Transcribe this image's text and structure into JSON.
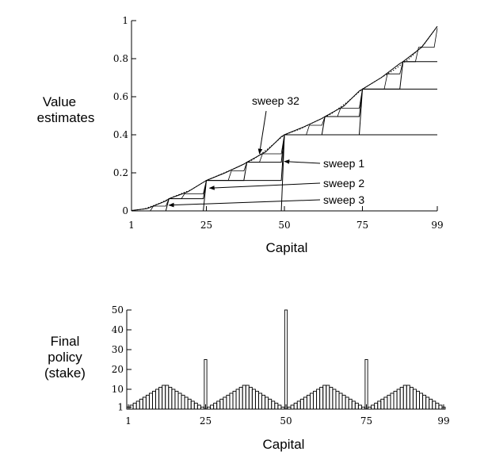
{
  "chart_data": [
    {
      "type": "line",
      "ylabel_lines": [
        "Value",
        "estimates"
      ],
      "xlabel": "Capital",
      "xlim": [
        1,
        99
      ],
      "ylim": [
        0,
        1
      ],
      "x_ticks": [
        1,
        25,
        50,
        75,
        99
      ],
      "y_ticks": [
        {
          "value": 0,
          "label": "0"
        },
        {
          "value": 0.2,
          "label": "0.2"
        },
        {
          "value": 0.4,
          "label": "0.4"
        },
        {
          "value": 0.6,
          "label": "0.6"
        },
        {
          "value": 0.8,
          "label": "0.8"
        },
        {
          "value": 1,
          "label": "1"
        }
      ],
      "grid": false,
      "series": [
        {
          "name": "sweep 1",
          "style": "solid",
          "points": [
            [
              1,
              0
            ],
            [
              49,
              0
            ],
            [
              50,
              0.4
            ],
            [
              98,
              0.4
            ],
            [
              99,
              0.4
            ]
          ]
        },
        {
          "name": "sweep 2",
          "style": "solid",
          "points": [
            [
              1,
              0
            ],
            [
              24,
              0
            ],
            [
              25,
              0.16
            ],
            [
              49,
              0.16
            ],
            [
              50,
              0.4
            ],
            [
              74,
              0.4
            ],
            [
              75,
              0.64
            ],
            [
              98,
              0.64
            ],
            [
              99,
              0.64
            ]
          ]
        },
        {
          "name": "sweep 3",
          "style": "solid",
          "points": [
            [
              1,
              0
            ],
            [
              12,
              0
            ],
            [
              13,
              0.064
            ],
            [
              24,
              0.064
            ],
            [
              25,
              0.16
            ],
            [
              37,
              0.16
            ],
            [
              38,
              0.256
            ],
            [
              49,
              0.256
            ],
            [
              50,
              0.4
            ],
            [
              62,
              0.4
            ],
            [
              63,
              0.496
            ],
            [
              74,
              0.496
            ],
            [
              75,
              0.64
            ],
            [
              87,
              0.64
            ],
            [
              88,
              0.784
            ],
            [
              98,
              0.784
            ],
            [
              99,
              0.784
            ]
          ]
        },
        {
          "name": "sweep 32",
          "style": "solid",
          "points": [
            [
              1,
              0.002
            ],
            [
              6,
              0.012
            ],
            [
              12,
              0.052
            ],
            [
              13,
              0.064
            ],
            [
              19,
              0.1
            ],
            [
              24,
              0.15
            ],
            [
              25,
              0.16
            ],
            [
              31,
              0.2
            ],
            [
              37,
              0.246
            ],
            [
              38,
              0.256
            ],
            [
              44,
              0.31
            ],
            [
              49,
              0.39
            ],
            [
              50,
              0.4
            ],
            [
              56,
              0.44
            ],
            [
              62,
              0.486
            ],
            [
              63,
              0.496
            ],
            [
              69,
              0.55
            ],
            [
              74,
              0.63
            ],
            [
              75,
              0.64
            ],
            [
              81,
              0.7
            ],
            [
              87,
              0.774
            ],
            [
              88,
              0.784
            ],
            [
              94,
              0.86
            ],
            [
              99,
              0.97
            ]
          ]
        },
        {
          "name": "",
          "style": "dotted",
          "points": [
            [
              1,
              0.002
            ],
            [
              5,
              0.01
            ],
            [
              10,
              0.04
            ],
            [
              15,
              0.078
            ],
            [
              20,
              0.11
            ],
            [
              25,
              0.16
            ],
            [
              30,
              0.195
            ],
            [
              35,
              0.23
            ],
            [
              40,
              0.27
            ],
            [
              45,
              0.33
            ],
            [
              50,
              0.4
            ],
            [
              55,
              0.43
            ],
            [
              60,
              0.47
            ],
            [
              65,
              0.51
            ],
            [
              70,
              0.57
            ],
            [
              75,
              0.64
            ],
            [
              80,
              0.69
            ],
            [
              85,
              0.74
            ],
            [
              90,
              0.8
            ],
            [
              95,
              0.88
            ],
            [
              99,
              0.97
            ]
          ]
        },
        {
          "name": "",
          "style": "solid-thin",
          "points": [
            [
              1,
              0
            ],
            [
              7,
              0
            ],
            [
              8,
              0.025
            ],
            [
              12,
              0.025
            ],
            [
              13,
              0.064
            ],
            [
              17,
              0.064
            ],
            [
              18,
              0.09
            ],
            [
              24,
              0.09
            ],
            [
              25,
              0.16
            ],
            [
              32,
              0.16
            ],
            [
              33,
              0.21
            ],
            [
              37,
              0.21
            ],
            [
              38,
              0.256
            ],
            [
              42,
              0.256
            ],
            [
              43,
              0.3
            ],
            [
              49,
              0.3
            ],
            [
              50,
              0.4
            ],
            [
              57,
              0.4
            ],
            [
              58,
              0.45
            ],
            [
              62,
              0.45
            ],
            [
              63,
              0.496
            ],
            [
              67,
              0.496
            ],
            [
              68,
              0.54
            ],
            [
              74,
              0.54
            ],
            [
              75,
              0.64
            ],
            [
              82,
              0.64
            ],
            [
              83,
              0.72
            ],
            [
              87,
              0.72
            ],
            [
              88,
              0.784
            ],
            [
              92,
              0.784
            ],
            [
              93,
              0.86
            ],
            [
              98,
              0.86
            ],
            [
              99,
              0.96
            ]
          ]
        }
      ],
      "annotations": [
        {
          "text": "sweep 32",
          "target": [
            42,
            0.3
          ]
        },
        {
          "text": "sweep 1",
          "target": [
            50,
            0.26
          ]
        },
        {
          "text": "sweep 2",
          "target": [
            26,
            0.12
          ]
        },
        {
          "text": "sweep 3",
          "target": [
            13,
            0.03
          ]
        }
      ]
    },
    {
      "type": "bar",
      "ylabel_lines": [
        "Final",
        "policy",
        "(stake)"
      ],
      "xlabel": "Capital",
      "xlim": [
        1,
        99
      ],
      "ylim": [
        0,
        50
      ],
      "x_ticks": [
        1,
        25,
        50,
        75,
        99
      ],
      "y_ticks": [
        {
          "value": 1,
          "label": "1"
        },
        {
          "value": 10,
          "label": "10"
        },
        {
          "value": 20,
          "label": "20"
        },
        {
          "value": 30,
          "label": "30"
        },
        {
          "value": 40,
          "label": "40"
        },
        {
          "value": 50,
          "label": "50"
        }
      ],
      "grid": false,
      "x": [
        1,
        2,
        3,
        4,
        5,
        6,
        7,
        8,
        9,
        10,
        11,
        12,
        13,
        14,
        15,
        16,
        17,
        18,
        19,
        20,
        21,
        22,
        23,
        24,
        25,
        26,
        27,
        28,
        29,
        30,
        31,
        32,
        33,
        34,
        35,
        36,
        37,
        38,
        39,
        40,
        41,
        42,
        43,
        44,
        45,
        46,
        47,
        48,
        49,
        50,
        51,
        52,
        53,
        54,
        55,
        56,
        57,
        58,
        59,
        60,
        61,
        62,
        63,
        64,
        65,
        66,
        67,
        68,
        69,
        70,
        71,
        72,
        73,
        74,
        75,
        76,
        77,
        78,
        79,
        80,
        81,
        82,
        83,
        84,
        85,
        86,
        87,
        88,
        89,
        90,
        91,
        92,
        93,
        94,
        95,
        96,
        97,
        98,
        99
      ],
      "values": [
        1,
        2,
        3,
        4,
        5,
        6,
        7,
        8,
        9,
        10,
        11,
        12,
        12,
        11,
        10,
        9,
        8,
        7,
        6,
        5,
        4,
        3,
        2,
        1,
        25,
        1,
        2,
        3,
        4,
        5,
        6,
        7,
        8,
        9,
        10,
        11,
        12,
        12,
        11,
        10,
        9,
        8,
        7,
        6,
        5,
        4,
        3,
        2,
        1,
        50,
        1,
        2,
        3,
        4,
        5,
        6,
        7,
        8,
        9,
        10,
        11,
        12,
        12,
        11,
        10,
        9,
        8,
        7,
        6,
        5,
        4,
        3,
        2,
        1,
        25,
        1,
        2,
        3,
        4,
        5,
        6,
        7,
        8,
        9,
        10,
        11,
        12,
        12,
        11,
        10,
        9,
        8,
        7,
        6,
        5,
        4,
        3,
        2,
        1
      ]
    }
  ]
}
